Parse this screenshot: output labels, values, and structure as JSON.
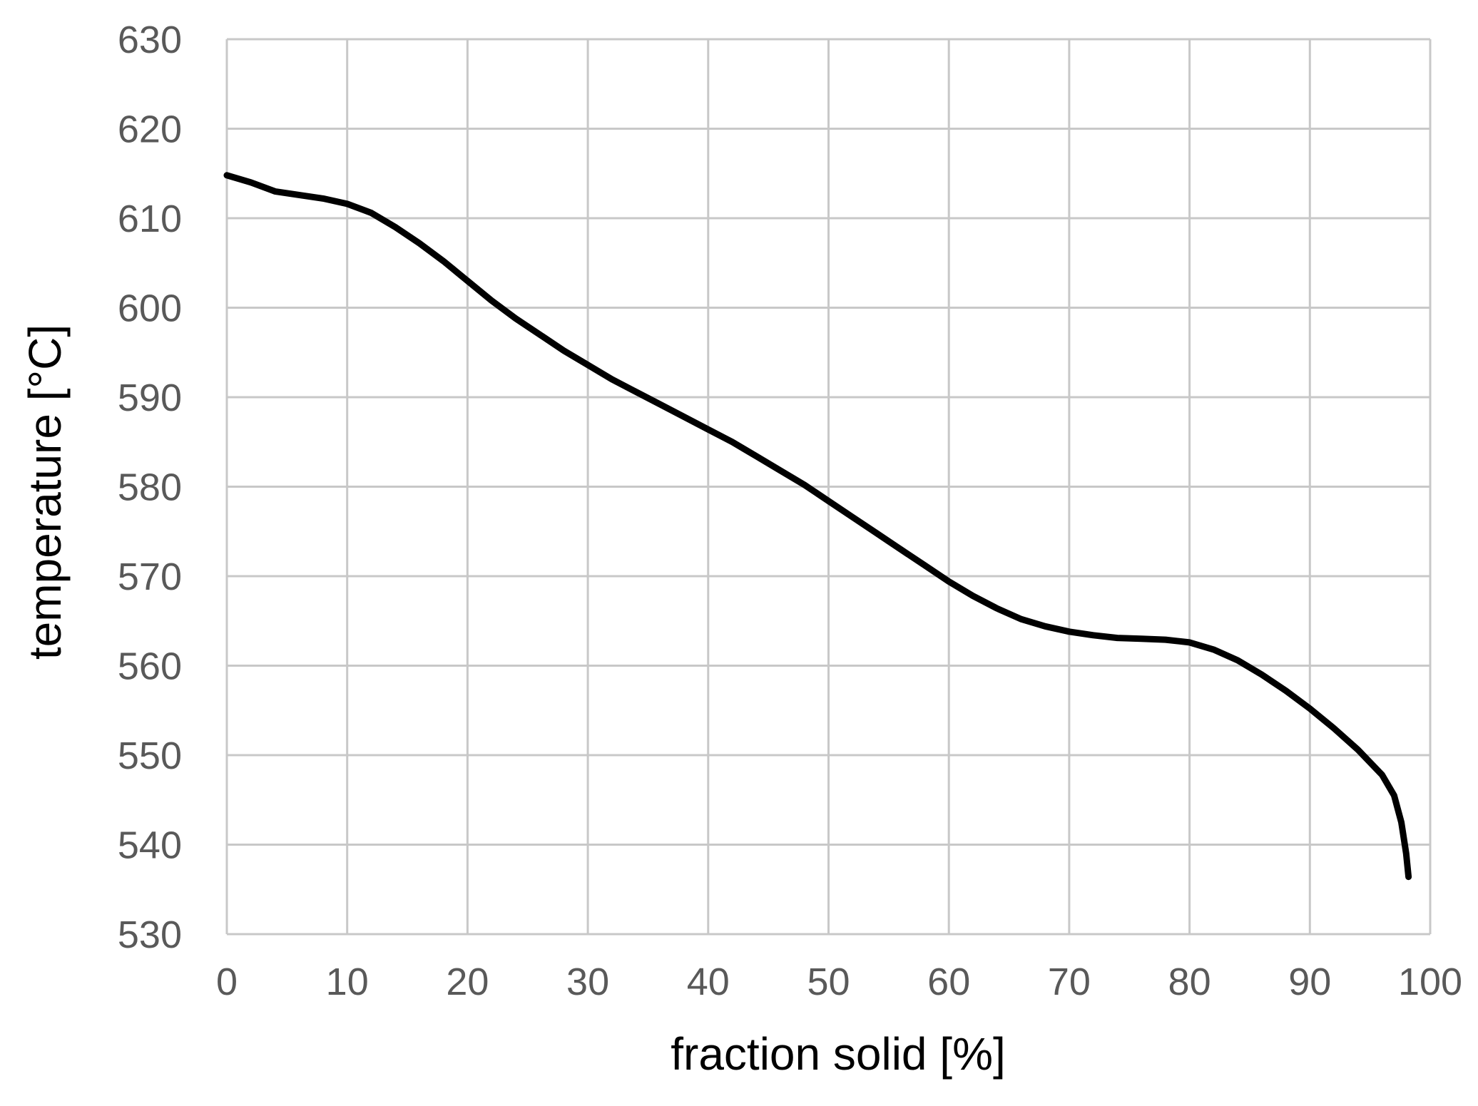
{
  "chart_data": {
    "type": "line",
    "title": "",
    "xlabel": "fraction solid [%]",
    "ylabel": "temperature [°C]",
    "xlim": [
      0,
      100
    ],
    "ylim": [
      530,
      630
    ],
    "x_ticks": [
      0,
      10,
      20,
      30,
      40,
      50,
      60,
      70,
      80,
      90,
      100
    ],
    "y_ticks": [
      530,
      540,
      550,
      560,
      570,
      580,
      590,
      600,
      610,
      620,
      630
    ],
    "grid": true,
    "series": [
      {
        "color": "#000000",
        "points": [
          [
            0,
            614.8
          ],
          [
            2,
            614.0
          ],
          [
            4,
            613.0
          ],
          [
            6,
            612.6
          ],
          [
            8,
            612.2
          ],
          [
            10,
            611.6
          ],
          [
            12,
            610.6
          ],
          [
            14,
            609.0
          ],
          [
            16,
            607.2
          ],
          [
            18,
            605.2
          ],
          [
            20,
            603.0
          ],
          [
            22,
            600.8
          ],
          [
            24,
            598.8
          ],
          [
            26,
            597.0
          ],
          [
            28,
            595.2
          ],
          [
            30,
            593.6
          ],
          [
            32,
            592.0
          ],
          [
            34,
            590.6
          ],
          [
            36,
            589.2
          ],
          [
            38,
            587.8
          ],
          [
            40,
            586.4
          ],
          [
            42,
            585.0
          ],
          [
            44,
            583.4
          ],
          [
            46,
            581.8
          ],
          [
            48,
            580.2
          ],
          [
            50,
            578.4
          ],
          [
            52,
            576.6
          ],
          [
            54,
            574.8
          ],
          [
            56,
            573.0
          ],
          [
            58,
            571.2
          ],
          [
            60,
            569.4
          ],
          [
            62,
            567.8
          ],
          [
            64,
            566.4
          ],
          [
            66,
            565.2
          ],
          [
            68,
            564.4
          ],
          [
            70,
            563.8
          ],
          [
            72,
            563.4
          ],
          [
            74,
            563.1
          ],
          [
            76,
            563.0
          ],
          [
            78,
            562.9
          ],
          [
            80,
            562.6
          ],
          [
            82,
            561.8
          ],
          [
            84,
            560.6
          ],
          [
            86,
            559.0
          ],
          [
            88,
            557.2
          ],
          [
            90,
            555.2
          ],
          [
            92,
            553.0
          ],
          [
            94,
            550.6
          ],
          [
            96,
            547.8
          ],
          [
            97,
            545.5
          ],
          [
            97.6,
            542.5
          ],
          [
            98,
            539.0
          ],
          [
            98.2,
            536.4
          ]
        ]
      }
    ]
  }
}
